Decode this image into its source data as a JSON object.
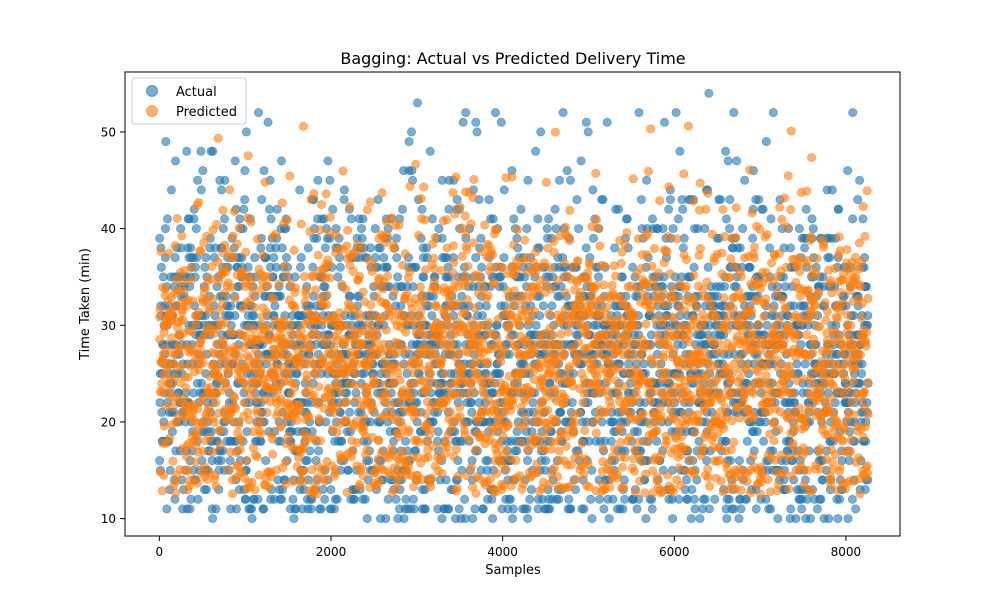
{
  "chart_data": {
    "type": "scatter",
    "title": "Bagging: Actual vs Predicted Delivery Time",
    "xlabel": "Samples",
    "ylabel": "Time Taken (min)",
    "xlim": [
      -400,
      8630
    ],
    "ylim": [
      8.2,
      56.2
    ],
    "x_ticks": [
      0,
      2000,
      4000,
      6000,
      8000
    ],
    "y_ticks": [
      10,
      20,
      30,
      40,
      50
    ],
    "grid": false,
    "legend_position": "upper-left",
    "n_samples": 8261,
    "series": [
      {
        "name": "Actual",
        "color": "#1f77b4",
        "alpha": 0.6,
        "integer_valued": true,
        "y_range": [
          10,
          54
        ],
        "center": 26,
        "spread": 9.3,
        "note_values": [
          10,
          11,
          12,
          13,
          14,
          15,
          16,
          17,
          18,
          19,
          20,
          21,
          22,
          23,
          24,
          25,
          26,
          27,
          28,
          29,
          30,
          31,
          32,
          33,
          34,
          35,
          36,
          37,
          38,
          39,
          40,
          41,
          42,
          43,
          44,
          45,
          46,
          47,
          48,
          49,
          50,
          51,
          52,
          53,
          54
        ]
      },
      {
        "name": "Predicted",
        "color": "#ff7f0e",
        "alpha": 0.6,
        "integer_valued": false,
        "y_range": [
          12.5,
          51.9
        ],
        "center": 26,
        "spread": 7.8
      }
    ]
  }
}
